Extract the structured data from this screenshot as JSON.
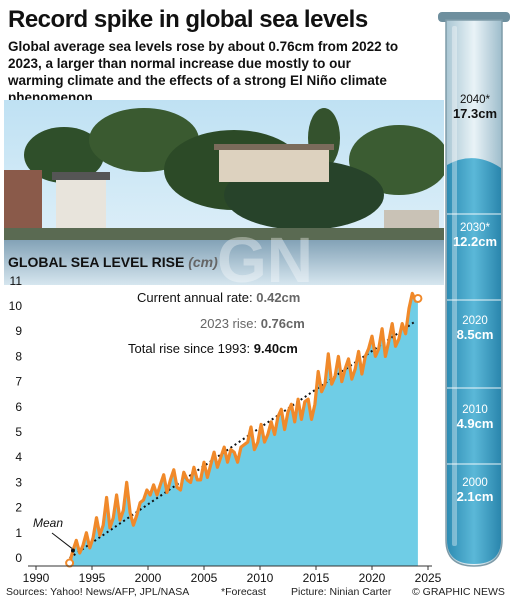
{
  "title": "Record spike in global sea levels",
  "subtitle": "Global average sea levels rose by about 0.76cm from 2022 to 2023, a larger than normal increase due mostly to our warming climate and the effects of a strong El Niño climate phenomenon",
  "chart_title": "GLOBAL SEA LEVEL RISE",
  "chart_unit": "(cm)",
  "annotations": {
    "current_rate_label": "Current annual rate:",
    "current_rate_value": "0.42cm",
    "rise_2023_label": "2023 rise:",
    "rise_2023_value": "0.76cm",
    "total_rise_label": "Total rise since 1993:",
    "total_rise_value": "9.40cm",
    "mean_label": "Mean"
  },
  "footer": {
    "sources": "Sources: Yahoo! News/AFP, JPL/NASA",
    "forecast_note": "*Forecast",
    "picture": "Picture: Ninian Carter",
    "copyright": "© GRAPHIC NEWS"
  },
  "watermark": {
    "logo": "GN",
    "text": "GRAPHIC NEWS"
  },
  "tube": [
    {
      "year": "2040*",
      "value": "17.3cm"
    },
    {
      "year": "2030*",
      "value": "12.2cm"
    },
    {
      "year": "2020",
      "value": "8.5cm"
    },
    {
      "year": "2010",
      "value": "4.9cm"
    },
    {
      "year": "2000",
      "value": "2.1cm"
    }
  ],
  "colors": {
    "area_fill": "#6fcde6",
    "line": "#f0892a",
    "trend": "#111111",
    "tube_water": "#3aa2c6"
  },
  "chart_data": {
    "type": "area",
    "xlim": [
      1990,
      2025
    ],
    "ylim": [
      0,
      11
    ],
    "x_ticks": [
      1990,
      1995,
      2000,
      2005,
      2010,
      2015,
      2020,
      2025
    ],
    "y_ticks": [
      0,
      1,
      2,
      3,
      4,
      5,
      6,
      7,
      8,
      9,
      10,
      11
    ],
    "grid": false,
    "series": [
      {
        "x": [
          1993.0,
          1993.3,
          1993.6,
          1993.9,
          1994.2,
          1994.5,
          1994.8,
          1995.1,
          1995.4,
          1995.7,
          1996.0,
          1996.3,
          1996.6,
          1996.9,
          1997.2,
          1997.5,
          1997.8,
          1998.1,
          1998.4,
          1998.7,
          1999.0,
          1999.3,
          1999.6,
          1999.9,
          2000.2,
          2000.5,
          2000.8,
          2001.1,
          2001.4,
          2001.7,
          2002.0,
          2002.3,
          2002.6,
          2002.9,
          2003.2,
          2003.5,
          2003.8,
          2004.1,
          2004.4,
          2004.7,
          2005.0,
          2005.3,
          2005.6,
          2005.9,
          2006.2,
          2006.5,
          2006.8,
          2007.1,
          2007.4,
          2007.7,
          2008.0,
          2008.3,
          2008.6,
          2008.9,
          2009.2,
          2009.5,
          2009.8,
          2010.1,
          2010.4,
          2010.7,
          2011.0,
          2011.3,
          2011.6,
          2011.9,
          2012.2,
          2012.5,
          2012.8,
          2013.1,
          2013.4,
          2013.7,
          2014.0,
          2014.3,
          2014.6,
          2014.9,
          2015.2,
          2015.5,
          2015.8,
          2016.1,
          2016.4,
          2016.7,
          2017.0,
          2017.3,
          2017.6,
          2017.9,
          2018.2,
          2018.5,
          2018.8,
          2019.1,
          2019.4,
          2019.7,
          2020.0,
          2020.3,
          2020.6,
          2020.9,
          2021.2,
          2021.5,
          2021.8,
          2022.1,
          2022.4,
          2022.7,
          2023.0,
          2023.3,
          2023.6,
          2023.9,
          2024.1
        ],
        "values": [
          -0.2,
          0.3,
          0.7,
          0.2,
          0.5,
          1.0,
          0.4,
          0.8,
          1.6,
          0.9,
          1.3,
          2.4,
          1.2,
          1.6,
          2.5,
          1.5,
          1.9,
          3.0,
          1.8,
          1.3,
          1.7,
          2.2,
          2.3,
          2.7,
          2.5,
          2.9,
          2.5,
          2.9,
          3.3,
          2.6,
          3.1,
          3.5,
          2.8,
          2.7,
          3.4,
          3.1,
          3.0,
          3.6,
          3.1,
          3.1,
          3.8,
          3.2,
          3.7,
          4.2,
          3.6,
          4.0,
          4.4,
          3.8,
          4.3,
          4.2,
          3.8,
          4.4,
          4.5,
          4.6,
          5.2,
          4.3,
          4.6,
          5.3,
          4.6,
          4.9,
          5.4,
          4.9,
          5.6,
          5.9,
          5.1,
          5.8,
          6.1,
          5.4,
          6.3,
          5.5,
          6.2,
          6.3,
          5.5,
          6.1,
          7.4,
          6.6,
          6.9,
          8.1,
          6.9,
          7.2,
          8.0,
          7.0,
          7.5,
          7.9,
          7.1,
          7.5,
          8.2,
          7.3,
          8.0,
          8.3,
          8.8,
          8.0,
          8.3,
          9.1,
          8.0,
          8.6,
          9.3,
          8.4,
          8.7,
          9.3,
          8.9,
          9.9,
          10.5,
          10.2,
          10.3
        ]
      }
    ],
    "trend": {
      "start": [
        1993.0,
        0.0
      ],
      "end": [
        2023.9,
        9.4
      ]
    },
    "mean": [
      1993.3,
      0.3
    ]
  }
}
